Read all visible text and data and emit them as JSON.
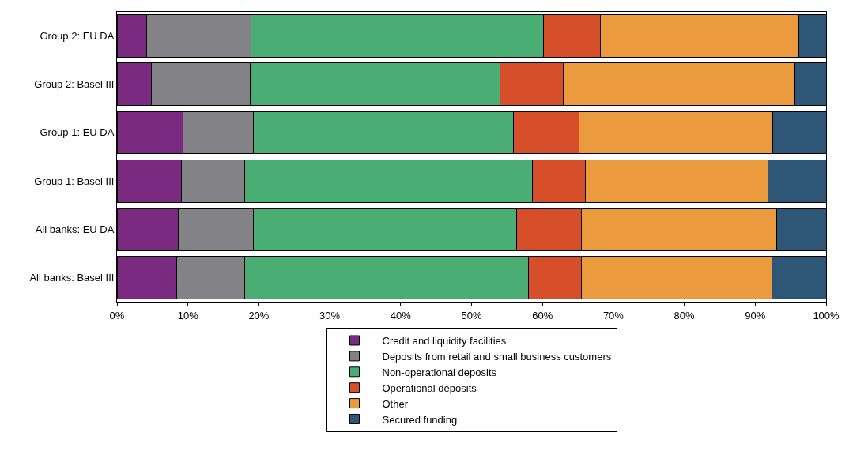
{
  "chart_data": {
    "type": "bar",
    "orientation": "horizontal",
    "stacked": true,
    "categories": [
      "Group 2: EU DA",
      "Group 2: Basel III",
      "Group 1: EU DA",
      "Group 1: Basel III",
      "All banks: EU DA",
      "All banks: Basel III"
    ],
    "series": [
      {
        "name": "Credit and liquidity facilities",
        "color": "#7b2a82",
        "values": [
          4.2,
          4.8,
          9.3,
          9.1,
          8.6,
          8.4
        ]
      },
      {
        "name": "Deposits from retail and small business customers",
        "color": "#838286",
        "values": [
          14.7,
          14.0,
          9.9,
          8.9,
          10.6,
          9.6
        ]
      },
      {
        "name": "Non-operational deposits",
        "color": "#4aad74",
        "values": [
          41.3,
          35.2,
          36.7,
          40.6,
          37.2,
          40.0
        ]
      },
      {
        "name": "Operational deposits",
        "color": "#d64f2a",
        "values": [
          8.0,
          8.9,
          9.3,
          7.5,
          9.1,
          7.5
        ]
      },
      {
        "name": "Other",
        "color": "#ec9a3e",
        "values": [
          27.9,
          32.7,
          27.3,
          25.7,
          27.5,
          26.9
        ]
      },
      {
        "name": "Secured funding",
        "color": "#2e5777",
        "values": [
          3.9,
          4.4,
          7.5,
          8.2,
          7.0,
          7.6
        ]
      }
    ],
    "xlim": [
      0,
      100
    ],
    "xticks": [
      {
        "value": 0,
        "label": "0%"
      },
      {
        "value": 10,
        "label": "10%"
      },
      {
        "value": 20,
        "label": "20%"
      },
      {
        "value": 30,
        "label": "30%"
      },
      {
        "value": 40,
        "label": "40%"
      },
      {
        "value": 50,
        "label": "50%"
      },
      {
        "value": 60,
        "label": "60%"
      },
      {
        "value": 70,
        "label": "70%"
      },
      {
        "value": 80,
        "label": "80%"
      },
      {
        "value": 90,
        "label": "90%"
      },
      {
        "value": 100,
        "label": "100%"
      }
    ],
    "grid": false,
    "legend": "bottom"
  }
}
